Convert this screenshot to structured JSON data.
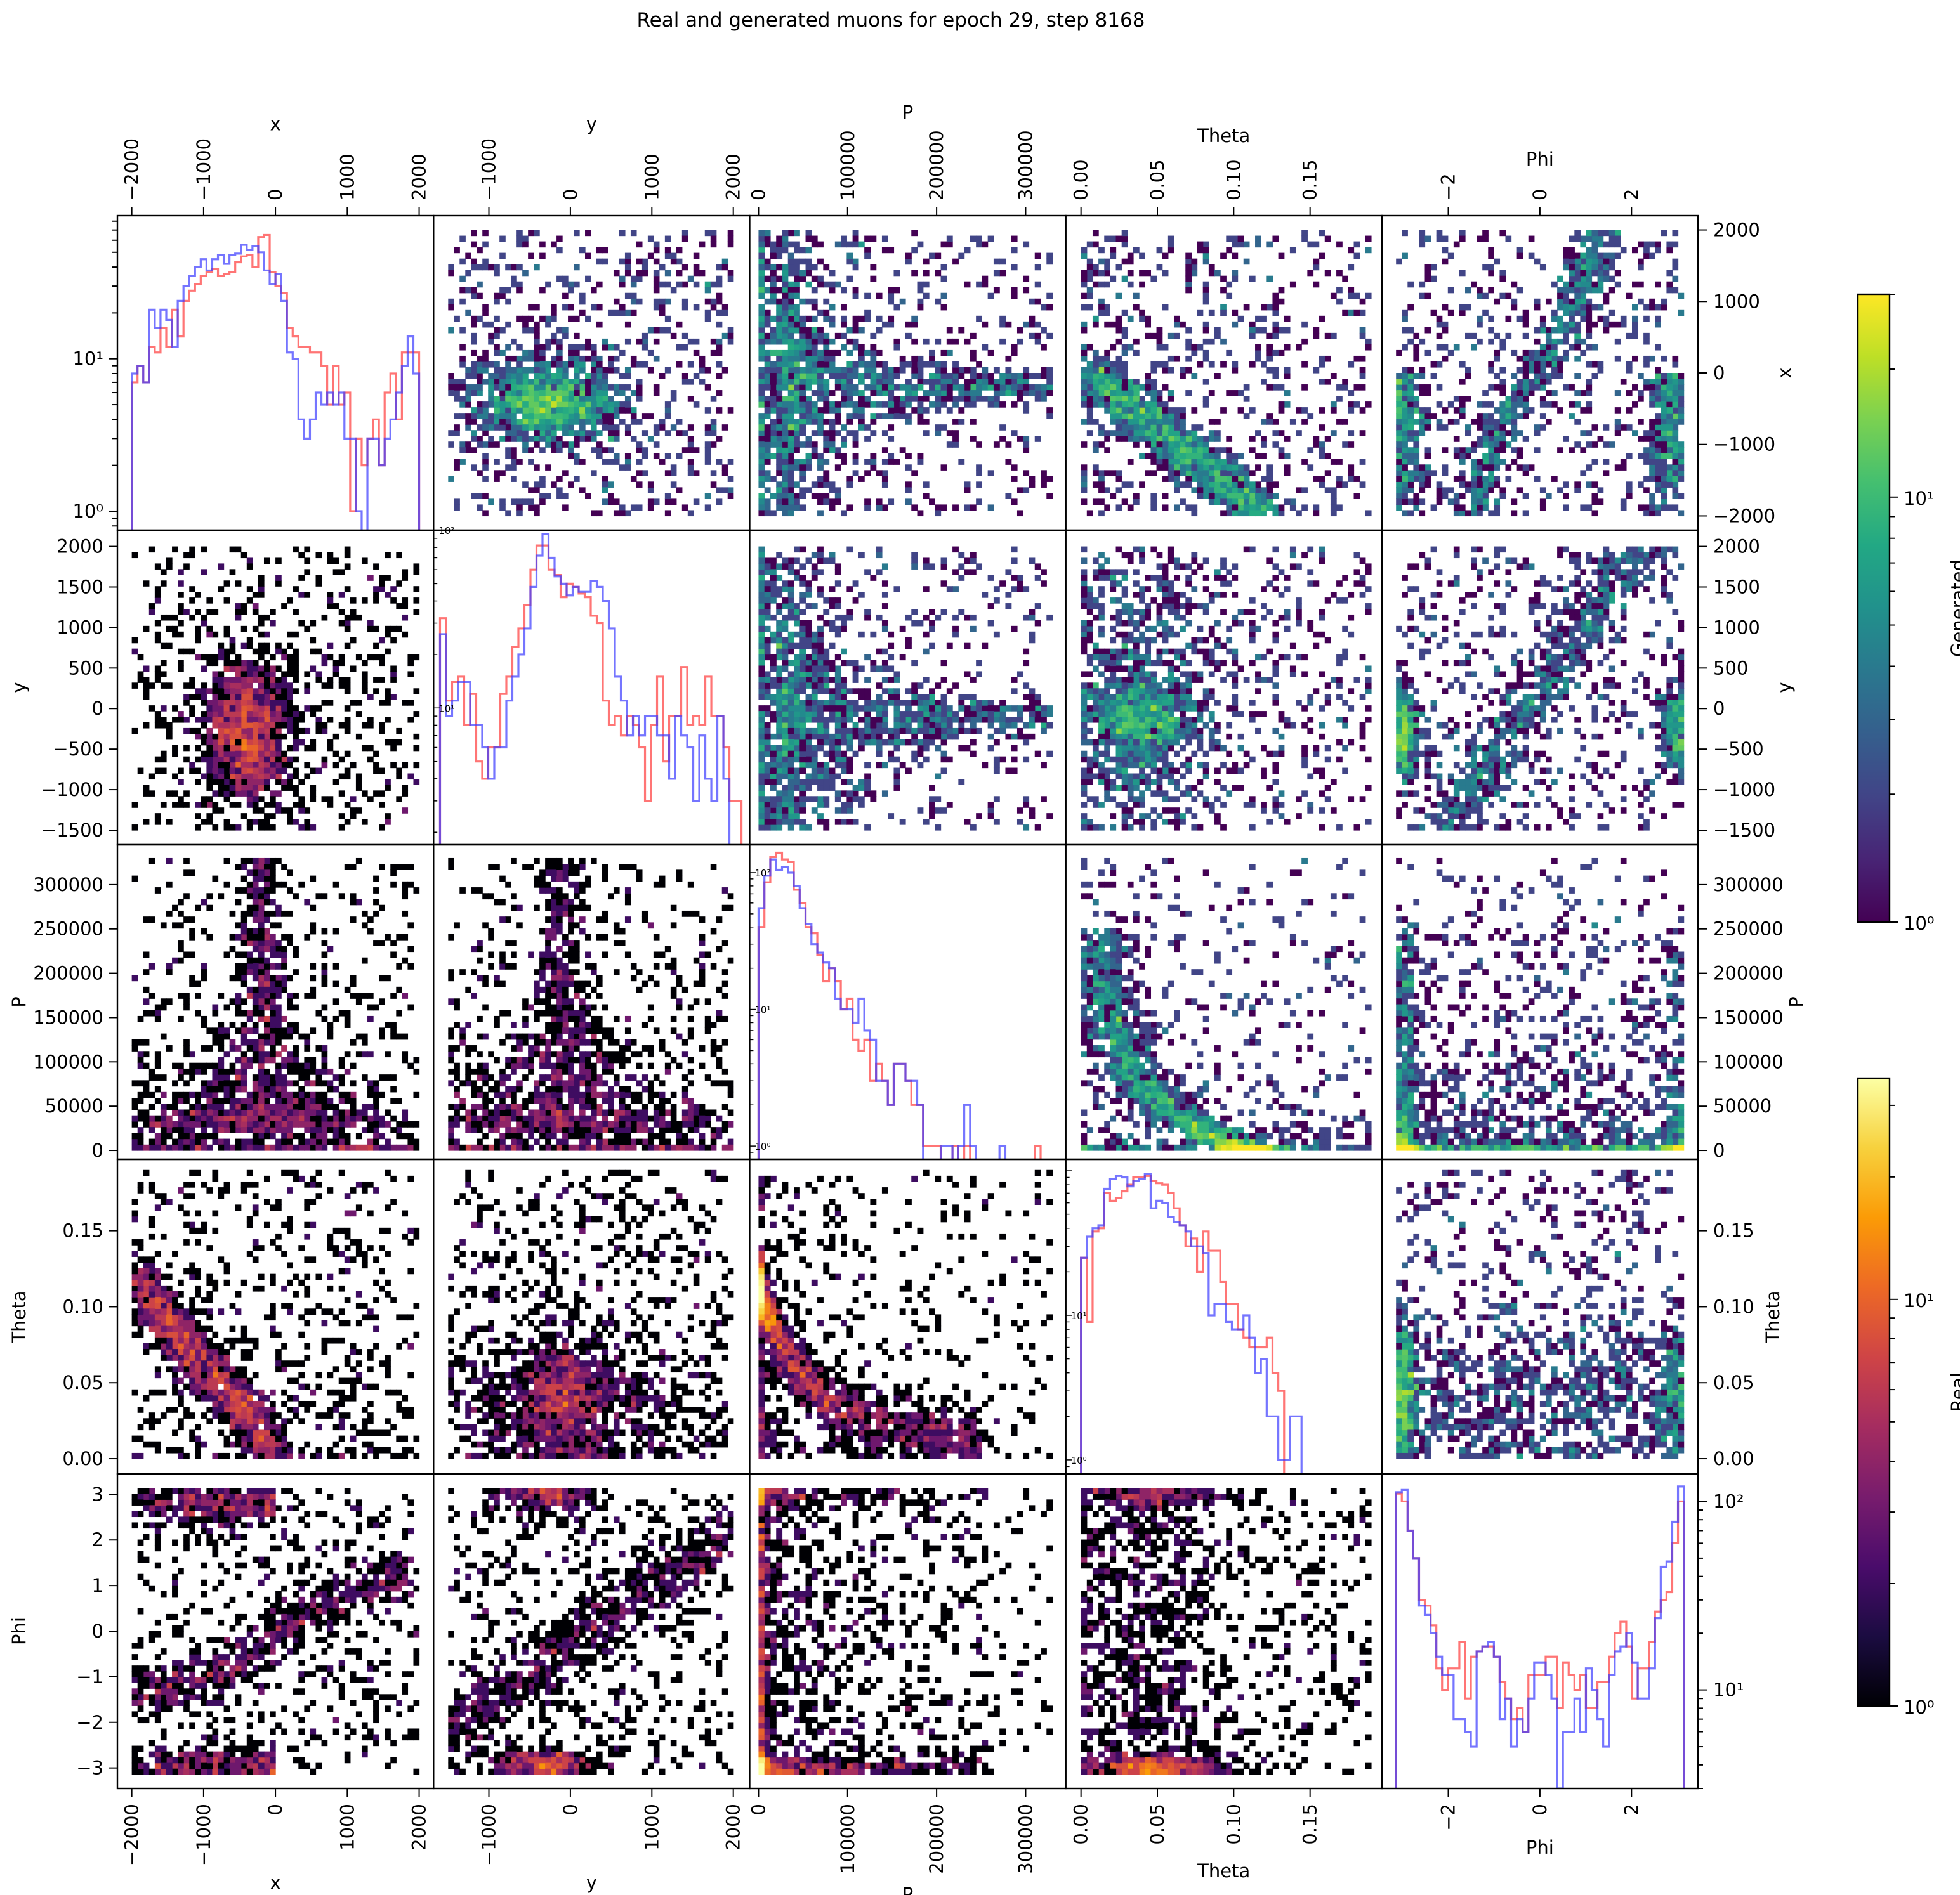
{
  "figure": {
    "title": "Real and generated muons for epoch 29, step 8168"
  },
  "chart_data": {
    "type": "pairplot",
    "title": "Real and generated muons for epoch 29, step 8168",
    "variables": [
      "x",
      "y",
      "P",
      "Theta",
      "Phi"
    ],
    "grid_rows": 5,
    "grid_cols": 5,
    "upper_triangle": "Generated (2D histogram, viridis, log color)",
    "lower_triangle": "Real (2D histogram, inferno, log color)",
    "diagonal": "1D histograms, log y-scale; red = real, blue = generated",
    "series_colors": {
      "real": "#ff3b3b",
      "generated": "#3b3bff"
    },
    "axes": {
      "x": {
        "label": "x",
        "range": [
          -2200,
          2200
        ],
        "ticks": [
          -2000,
          -1000,
          0,
          1000,
          2000
        ],
        "tick_labels": [
          "−2000",
          "−1000",
          "0",
          "1000",
          "2000"
        ],
        "row_ticks": [
          -2000,
          -1000,
          0,
          1000,
          2000
        ],
        "row_tick_labels": [
          "−2000",
          "−1000",
          "0",
          "1000",
          "2000"
        ]
      },
      "y": {
        "label": "y",
        "range": [
          -1680,
          2200
        ],
        "ticks": [
          -1000,
          0,
          1000,
          2000
        ],
        "tick_labels": [
          "−1000",
          "0",
          "1000",
          "2000"
        ],
        "row_ticks": [
          -1500,
          -1000,
          -500,
          0,
          500,
          1000,
          1500,
          2000
        ],
        "row_tick_labels": [
          "−1500",
          "−1000",
          "−500",
          "0",
          "500",
          "1000",
          "1500",
          "2000"
        ]
      },
      "P": {
        "label": "P",
        "range": [
          -10000,
          345000
        ],
        "ticks": [
          0,
          100000,
          200000,
          300000
        ],
        "tick_labels": [
          "0",
          "100000",
          "200000",
          "300000"
        ],
        "row_ticks": [
          0,
          50000,
          100000,
          150000,
          200000,
          250000,
          300000
        ],
        "row_tick_labels": [
          "0",
          "50000",
          "100000",
          "150000",
          "200000",
          "250000",
          "300000"
        ]
      },
      "Theta": {
        "label": "Theta",
        "range": [
          -0.01,
          0.197
        ],
        "ticks": [
          0,
          0.05,
          0.1,
          0.15
        ],
        "tick_labels": [
          "0.00",
          "0.05",
          "0.10",
          "0.15"
        ],
        "row_ticks": [
          0,
          0.05,
          0.1,
          0.15
        ],
        "row_tick_labels": [
          "0.00",
          "0.05",
          "0.10",
          "0.15"
        ]
      },
      "Phi": {
        "label": "Phi",
        "range": [
          -3.45,
          3.45
        ],
        "ticks": [
          -2,
          0,
          2
        ],
        "tick_labels": [
          "−2",
          "0",
          "2"
        ],
        "row_ticks": [
          -3,
          -2,
          -1,
          0,
          1,
          2,
          3
        ],
        "row_tick_labels": [
          "−3",
          "−2",
          "−1",
          "0",
          "1",
          "2",
          "3"
        ]
      }
    },
    "histograms": [
      {
        "variable": "x",
        "bins": 50,
        "xrange": [
          -2000,
          2000
        ],
        "ylim_log": [
          0.75,
          87
        ],
        "yticks": [
          1,
          10
        ],
        "ytick_labels": [
          "10⁰",
          "10¹"
        ],
        "real": [
          7,
          9,
          7,
          12,
          11,
          16,
          12,
          21,
          14,
          24,
          28,
          31,
          35,
          37,
          39,
          35,
          36,
          37,
          43,
          47,
          48,
          40,
          63,
          65,
          37,
          30,
          27,
          16,
          14,
          12,
          12,
          11,
          11,
          9,
          5,
          9,
          5,
          6,
          1,
          3,
          2,
          3,
          4,
          2,
          6,
          8,
          4,
          11,
          11,
          11
        ],
        "generated": [
          8,
          9,
          7,
          21,
          16,
          21,
          18,
          12,
          24,
          30,
          35,
          40,
          45,
          38,
          45,
          48,
          42,
          48,
          49,
          56,
          52,
          55,
          50,
          38,
          31,
          36,
          24,
          11,
          10,
          4,
          3,
          4,
          6,
          5,
          6,
          5,
          6,
          3,
          3,
          1,
          0,
          3,
          3,
          2,
          3,
          4,
          6,
          9,
          14,
          8
        ]
      },
      {
        "variable": "y",
        "bins": 50,
        "xrange": [
          -1600,
          2100
        ],
        "ylim_log": [
          1.7,
          100
        ],
        "yticks": [
          10,
          100
        ],
        "ytick_labels": [
          "10¹",
          "10²"
        ],
        "real": [
          32,
          11,
          14,
          15,
          8,
          12,
          5,
          4,
          6,
          6,
          12,
          15,
          22,
          28,
          38,
          60,
          82,
          82,
          60,
          56,
          42,
          50,
          48,
          44,
          42,
          33,
          30,
          11,
          8,
          9,
          7,
          9,
          8,
          6,
          3,
          8,
          15,
          5,
          9,
          9,
          17,
          8,
          9,
          8,
          15,
          9,
          9,
          6,
          3,
          3
        ],
        "generated": [
          26,
          9,
          11,
          14,
          14,
          8,
          8,
          6,
          4,
          6,
          6,
          11,
          15,
          20,
          28,
          48,
          72,
          95,
          70,
          55,
          50,
          43,
          48,
          45,
          45,
          52,
          48,
          40,
          28,
          15,
          11,
          7,
          9,
          7,
          9,
          9,
          7,
          7,
          4,
          9,
          7,
          6,
          3,
          7,
          4,
          3,
          9,
          4,
          1,
          1
        ]
      },
      {
        "variable": "P",
        "bins": 50,
        "xrange": [
          0,
          330000
        ],
        "ylim_log": [
          0.8,
          160
        ],
        "yticks": [
          1,
          10,
          100
        ],
        "ytick_labels": [
          "10⁰",
          "10¹",
          "10²"
        ],
        "real": [
          40,
          85,
          130,
          140,
          125,
          120,
          75,
          60,
          40,
          36,
          25,
          16,
          20,
          16,
          10,
          12,
          6,
          5,
          6,
          3,
          4,
          3,
          2,
          4,
          4,
          3,
          2,
          2,
          1,
          1,
          1,
          0,
          0,
          1,
          0,
          1,
          0,
          0,
          0,
          0,
          0,
          0,
          0,
          0,
          0,
          0,
          0,
          1,
          0,
          0
        ],
        "generated": [
          55,
          95,
          125,
          105,
          110,
          100,
          80,
          55,
          42,
          30,
          26,
          22,
          20,
          12,
          10,
          10,
          8,
          12,
          7,
          6,
          3,
          3,
          2,
          4,
          4,
          3,
          3,
          2,
          0,
          0,
          0,
          1,
          1,
          0,
          1,
          2,
          1,
          0,
          0,
          0,
          0,
          1,
          0,
          0,
          0,
          0,
          0,
          0,
          0,
          0
        ]
      },
      {
        "variable": "Theta",
        "bins": 50,
        "xrange": [
          0,
          0.19
        ],
        "ylim_log": [
          0.8,
          120
        ],
        "yticks": [
          1,
          10
        ],
        "ytick_labels": [
          "10⁰",
          "10¹"
        ],
        "real": [
          25,
          9,
          38,
          40,
          70,
          62,
          65,
          72,
          80,
          90,
          90,
          92,
          85,
          82,
          80,
          70,
          55,
          42,
          30,
          34,
          20,
          38,
          28,
          28,
          17,
          12,
          12,
          8,
          7,
          6,
          6,
          6,
          7,
          4,
          3,
          0,
          0,
          0,
          0,
          0,
          0,
          0,
          0,
          0,
          0,
          0,
          0,
          0,
          0,
          0
        ],
        "generated": [
          25,
          35,
          40,
          42,
          75,
          88,
          92,
          90,
          78,
          85,
          88,
          95,
          55,
          62,
          60,
          48,
          44,
          42,
          38,
          30,
          30,
          27,
          10,
          12,
          12,
          9,
          8,
          8,
          10,
          7,
          4,
          5,
          2,
          2,
          1,
          1,
          2,
          2,
          0,
          0,
          0,
          0,
          0,
          0,
          0,
          0,
          0,
          0,
          0,
          0
        ]
      },
      {
        "variable": "Phi",
        "bins": 50,
        "xrange": [
          -3.14,
          3.14
        ],
        "ylim_log": [
          3.0,
          140
        ],
        "yticks": [
          10,
          100
        ],
        "ytick_labels": [
          "10¹",
          "10²"
        ],
        "real": [
          110,
          100,
          70,
          50,
          30,
          28,
          22,
          13,
          10,
          13,
          13,
          18,
          9,
          15,
          16,
          17,
          17,
          15,
          11,
          9,
          7,
          8,
          6,
          12,
          12,
          12,
          15,
          15,
          8,
          14,
          12,
          10,
          12,
          8,
          8,
          11,
          11,
          15,
          20,
          23,
          17,
          9,
          13,
          13,
          18,
          26,
          30,
          33,
          60,
          100
        ],
        "generated": [
          112,
          115,
          70,
          50,
          28,
          25,
          20,
          15,
          12,
          12,
          7,
          7,
          6,
          5,
          16,
          17,
          18,
          15,
          7,
          9,
          5,
          7,
          6,
          9,
          14,
          14,
          12,
          9,
          3,
          6,
          6,
          9,
          6,
          13,
          10,
          7,
          5,
          12,
          16,
          17,
          20,
          14,
          9,
          9,
          13,
          24,
          45,
          48,
          78,
          120
        ]
      }
    ],
    "pair_panels": {
      "relations": [
        {
          "pair": [
            "x",
            "y"
          ],
          "shape": "blob",
          "center": [
            -400,
            -300
          ],
          "spread": [
            300,
            450
          ],
          "background": 0.35
        },
        {
          "pair": [
            "x",
            "P"
          ],
          "shape": "spike",
          "center": [
            -200,
            30000
          ],
          "peak": 320000,
          "background": 0.45
        },
        {
          "pair": [
            "x",
            "Theta"
          ],
          "shape": "anticorr",
          "from": [
            -2000,
            0.12
          ],
          "to": [
            0,
            0.005
          ],
          "background": 0.35
        },
        {
          "pair": [
            "x",
            "Phi"
          ],
          "shape": "sinusoid",
          "bands": "Phi = asin-like vs x; dense at Phi=±3 for x<0",
          "background": 0.3
        },
        {
          "pair": [
            "y",
            "P"
          ],
          "shape": "spike",
          "center": [
            -100,
            30000
          ],
          "peak": 320000,
          "background": 0.45
        },
        {
          "pair": [
            "y",
            "Theta"
          ],
          "shape": "cross",
          "center": [
            -100,
            0.04
          ],
          "background": 0.4
        },
        {
          "pair": [
            "y",
            "Phi"
          ],
          "shape": "sinusoid",
          "bands": "Phi rises with y; dense near Phi=±3 at y≈0",
          "background": 0.3
        },
        {
          "pair": [
            "P",
            "Theta"
          ],
          "shape": "falloff",
          "center": [
            30000,
            0.04
          ],
          "background": 0.3
        },
        {
          "pair": [
            "P",
            "Phi"
          ],
          "shape": "columns",
          "center": [
            30000,
            0
          ],
          "background": 0.3
        },
        {
          "pair": [
            "Theta",
            "Phi"
          ],
          "shape": "columns",
          "center": [
            0.04,
            0
          ],
          "background": 0.35
        }
      ],
      "bins": 50
    },
    "colorbars": [
      {
        "name": "Generated",
        "cmap": "viridis",
        "scale": "log",
        "range": [
          1,
          30
        ],
        "tick_labels": [
          "10⁰",
          "10¹"
        ]
      },
      {
        "name": "Real",
        "cmap": "inferno",
        "scale": "log",
        "range": [
          1,
          35
        ],
        "tick_labels": [
          "10⁰",
          "10¹"
        ]
      }
    ]
  }
}
